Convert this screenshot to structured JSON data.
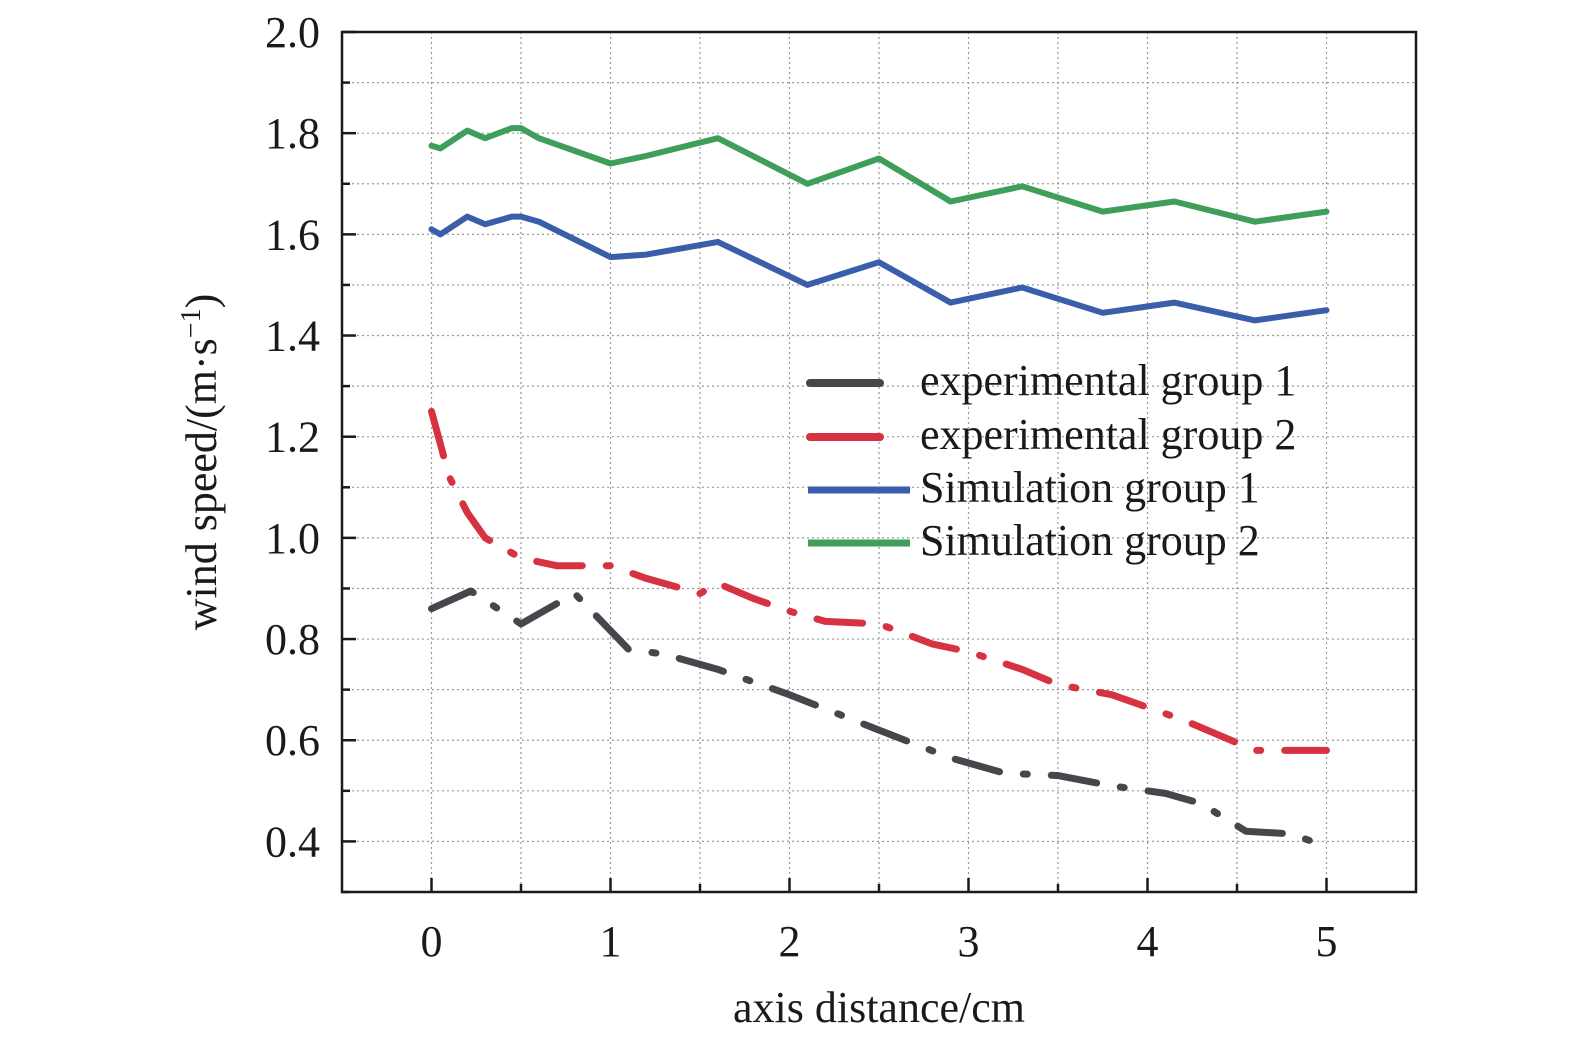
{
  "chart_data": {
    "type": "line",
    "title": "",
    "xlabel": "axis distance/cm",
    "ylabel_main": "wind speed/(m·s",
    "ylabel_sup": "−1",
    "ylabel_close": ")",
    "xlim": [
      -0.5,
      5.5
    ],
    "ylim": [
      0.3,
      2.0
    ],
    "xticks": [
      0,
      1,
      2,
      3,
      4,
      5
    ],
    "yticks": [
      0.4,
      0.6,
      0.8,
      1.0,
      1.2,
      1.4,
      1.6,
      1.8,
      2.0
    ],
    "xtick_labels": [
      "0",
      "1",
      "2",
      "3",
      "4",
      "5"
    ],
    "ytick_labels": [
      "0.4",
      "0.6",
      "0.8",
      "1.0",
      "1.2",
      "1.4",
      "1.6",
      "1.8",
      "2.0"
    ],
    "grid": true,
    "legend_position": "center-right",
    "series": [
      {
        "name": "experimental group 1",
        "color": "#46464d",
        "style": "dashdot",
        "x": [
          0,
          0.22,
          0.5,
          0.8,
          1.1,
          1.3,
          1.6,
          2.0,
          2.5,
          2.9,
          3.2,
          3.5,
          3.8,
          4.1,
          4.3,
          4.55,
          4.8,
          5.0
        ],
        "y": [
          0.86,
          0.895,
          0.83,
          0.89,
          0.78,
          0.77,
          0.74,
          0.69,
          0.62,
          0.565,
          0.535,
          0.53,
          0.51,
          0.495,
          0.475,
          0.42,
          0.415,
          0.39
        ]
      },
      {
        "name": "experimental group 2",
        "color": "#d63241",
        "style": "dashdot",
        "x": [
          0,
          0.1,
          0.2,
          0.3,
          0.5,
          0.7,
          1.0,
          1.2,
          1.5,
          1.6,
          1.8,
          2.0,
          2.2,
          2.5,
          2.8,
          3.0,
          3.3,
          3.5,
          3.8,
          4.2,
          4.4,
          4.6,
          4.8,
          5.0
        ],
        "y": [
          1.25,
          1.12,
          1.05,
          1.0,
          0.96,
          0.945,
          0.945,
          0.92,
          0.89,
          0.91,
          0.88,
          0.855,
          0.835,
          0.83,
          0.79,
          0.775,
          0.74,
          0.71,
          0.69,
          0.64,
          0.61,
          0.58,
          0.58,
          0.58
        ]
      },
      {
        "name": "Simulation group 1",
        "color": "#3a5eaa",
        "style": "solid",
        "x": [
          0,
          0.05,
          0.2,
          0.3,
          0.45,
          0.5,
          0.6,
          1.0,
          1.2,
          1.6,
          2.1,
          2.5,
          2.9,
          3.3,
          3.75,
          4.15,
          4.6,
          5.0
        ],
        "y": [
          1.61,
          1.6,
          1.635,
          1.62,
          1.635,
          1.635,
          1.625,
          1.555,
          1.56,
          1.585,
          1.5,
          1.545,
          1.465,
          1.495,
          1.445,
          1.465,
          1.43,
          1.45
        ]
      },
      {
        "name": "Simulation group 2",
        "color": "#3f9e5a",
        "style": "solid",
        "x": [
          0,
          0.05,
          0.2,
          0.3,
          0.45,
          0.5,
          0.6,
          1.0,
          1.2,
          1.6,
          2.1,
          2.5,
          2.9,
          3.3,
          3.75,
          4.15,
          4.6,
          5.0
        ],
        "y": [
          1.775,
          1.77,
          1.805,
          1.79,
          1.81,
          1.81,
          1.79,
          1.74,
          1.755,
          1.79,
          1.7,
          1.75,
          1.665,
          1.695,
          1.645,
          1.665,
          1.625,
          1.645
        ]
      }
    ]
  }
}
